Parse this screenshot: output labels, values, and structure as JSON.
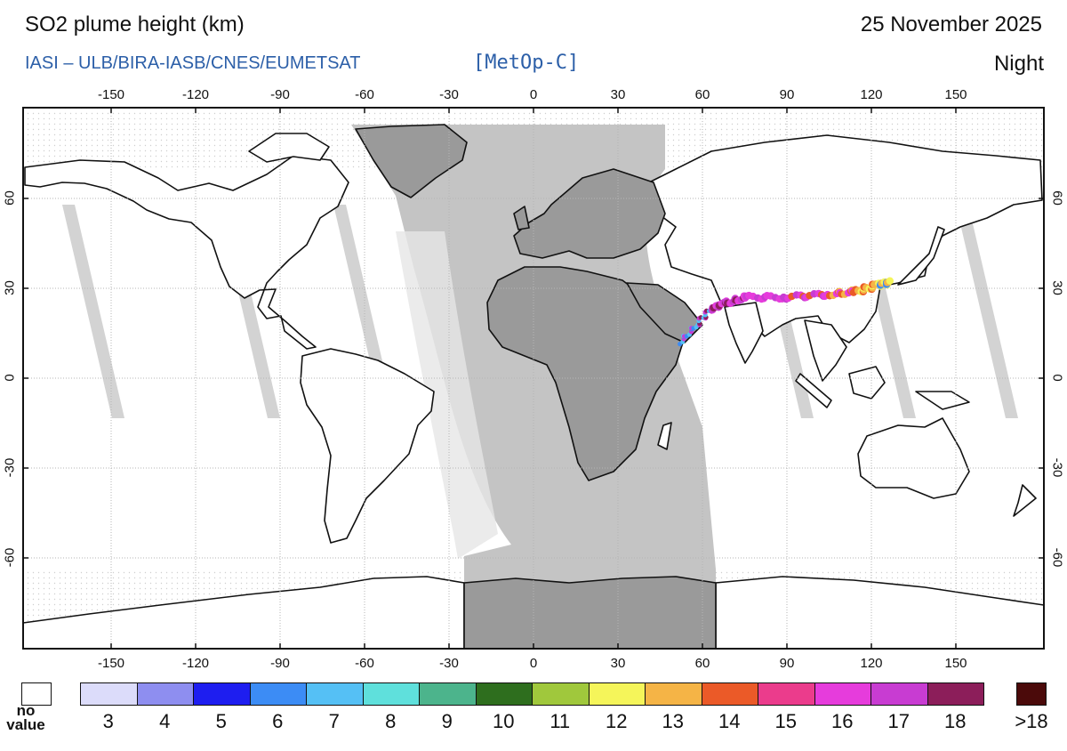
{
  "header": {
    "title": "SO2 plume height (km)",
    "date": "25 November 2025",
    "credit": "IASI  –  ULB/BIRA-IASB/CNES/EUMETSAT",
    "platform": "[MetOp-C]",
    "mode": "Night"
  },
  "map": {
    "lon_ticks": [
      "-150",
      "-120",
      "-90",
      "-60",
      "-30",
      "0",
      "30",
      "60",
      "90",
      "120",
      "150"
    ],
    "lat_ticks": [
      "60",
      "30",
      "0",
      "-30",
      "-60"
    ],
    "colors": {
      "frame": "#111111",
      "daytime_gray": "#9a9a9a",
      "swath_gray": "#d3d3d3",
      "grid": "#b5b5b5"
    },
    "plume": {
      "description_points": [
        [
          52,
          12
        ],
        [
          58,
          18
        ],
        [
          63,
          23
        ],
        [
          68,
          25
        ],
        [
          75,
          27
        ],
        [
          90,
          27
        ],
        [
          105,
          28
        ],
        [
          115,
          29
        ],
        [
          122,
          31
        ],
        [
          127,
          32
        ]
      ]
    }
  },
  "legend": {
    "no_value_label": "no\nvalue",
    "no_value_color": "#ffffff",
    "over_label": ">18",
    "over_color": "#4b0a0a",
    "bins": [
      {
        "label": "3",
        "color": "#dcdcfa"
      },
      {
        "label": "4",
        "color": "#8e8ef0"
      },
      {
        "label": "5",
        "color": "#1e1ef0"
      },
      {
        "label": "6",
        "color": "#3c8cf5"
      },
      {
        "label": "7",
        "color": "#55c0f5"
      },
      {
        "label": "8",
        "color": "#5fe0dc"
      },
      {
        "label": "9",
        "color": "#4cb48c"
      },
      {
        "label": "10",
        "color": "#2e6e1e"
      },
      {
        "label": "11",
        "color": "#a0c83c"
      },
      {
        "label": "12",
        "color": "#f5f55a"
      },
      {
        "label": "13",
        "color": "#f5b446"
      },
      {
        "label": "14",
        "color": "#eb5a28"
      },
      {
        "label": "15",
        "color": "#eb3c8c"
      },
      {
        "label": "16",
        "color": "#e63cdc"
      },
      {
        "label": "17",
        "color": "#c83cd2"
      },
      {
        "label": "18",
        "color": "#8c1e5a"
      }
    ]
  }
}
